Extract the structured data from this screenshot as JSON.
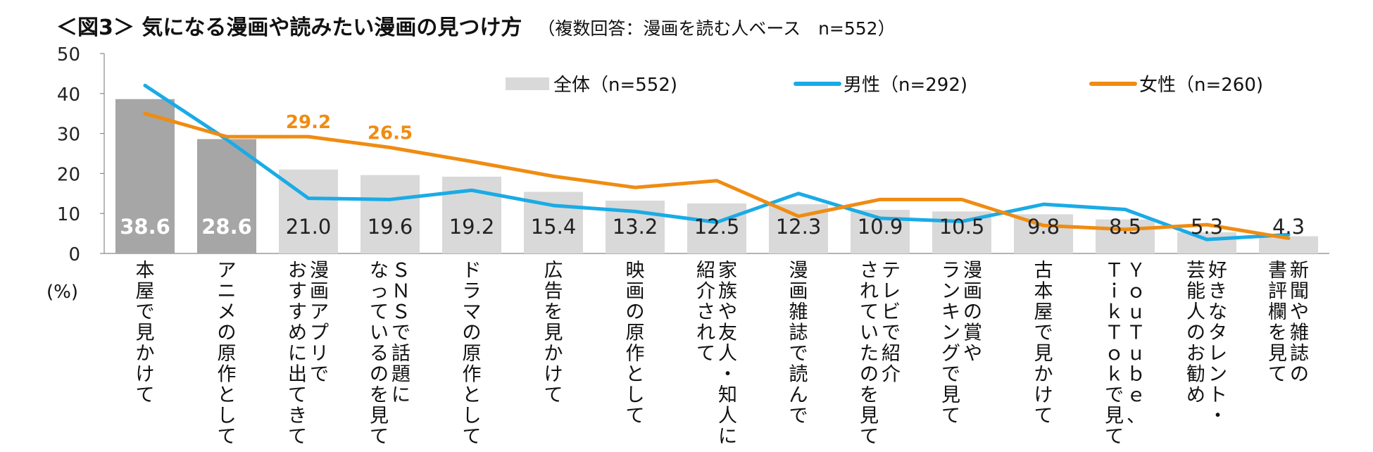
{
  "title": "＜図3＞ 気になる漫画や読みたい漫画の見つけ方",
  "subtitle": "（複数回答：漫画を読む人ベース　n=552）",
  "y_unit_label": "(%)",
  "colors": {
    "bar_top": "#a6a6a6",
    "bar": "#d9d9d9",
    "male": "#1aabe6",
    "female": "#ef8c12",
    "axis": "#888888",
    "bar_label_light": "#ffffff",
    "bar_label_dark": "#222222"
  },
  "chart_data": {
    "type": "bar",
    "ylim": [
      0,
      50
    ],
    "yticks": [
      0,
      10,
      20,
      30,
      40,
      50
    ],
    "legend_position": "top-right",
    "categories": [
      "本屋で見かけて",
      "アニメの原作として",
      "漫画アプリでおすすめに出てきて",
      "ＳＮＳで話題になっているのを見て",
      "ドラマの原作として",
      "広告を見かけて",
      "映画の原作として",
      "家族や友人・知人に紹介されて",
      "漫画雑誌で読んで",
      "テレビで紹介されていたのを見て",
      "漫画の賞やランキングで見て",
      "古本屋で見かけて",
      "ＹｏｕＴｕｂｅ、ＴｉｋＴｏｋで見て",
      "好きなタレント・芸能人のお勧め",
      "新聞や雑誌の書評欄を見て"
    ],
    "category_lines": [
      [
        "本屋で見かけて"
      ],
      [
        "アニメの原作として"
      ],
      [
        "漫画アプリで",
        "おすすめに出てきて"
      ],
      [
        "ＳＮＳで話題に",
        "なっているのを見て"
      ],
      [
        "ドラマの原作として"
      ],
      [
        "広告を見かけて"
      ],
      [
        "映画の原作として"
      ],
      [
        "家族や友人・知人に",
        "紹介されて"
      ],
      [
        "漫画雑誌で読んで"
      ],
      [
        "テレビで紹介",
        "されていたのを見て"
      ],
      [
        "漫画の賞や",
        "ランキングで見て"
      ],
      [
        "古本屋で見かけて"
      ],
      [
        "ＹｏｕＴｕｂｅ、",
        "ＴｉｋＴｏｋで見て"
      ],
      [
        "好きなタレント・",
        "芸能人のお勧め"
      ],
      [
        "新聞や雑誌の",
        "書評欄を見て"
      ]
    ],
    "series": [
      {
        "name": "全体（n=552)",
        "kind": "bar",
        "values": [
          38.6,
          28.6,
          21.0,
          19.6,
          19.2,
          15.4,
          13.2,
          12.5,
          12.3,
          10.9,
          10.5,
          9.8,
          8.5,
          5.3,
          4.3
        ],
        "labels": [
          "38.6",
          "28.6",
          "21.0",
          "19.6",
          "19.2",
          "15.4",
          "13.2",
          "12.5",
          "12.3",
          "10.9",
          "10.5",
          "9.8",
          "8.5",
          "5.3",
          "4.3"
        ]
      },
      {
        "name": "男性（n=292)",
        "kind": "line",
        "values": [
          42.0,
          28.5,
          13.8,
          13.5,
          15.8,
          12.0,
          10.5,
          7.8,
          15.0,
          8.8,
          8.0,
          12.3,
          11.0,
          3.5,
          4.7
        ]
      },
      {
        "name": "女性（n=260)",
        "kind": "line",
        "values": [
          35.0,
          29.2,
          29.2,
          26.5,
          23.0,
          19.3,
          16.5,
          18.2,
          9.3,
          13.5,
          13.5,
          7.0,
          6.0,
          7.2,
          3.8
        ]
      }
    ],
    "female_annotations": [
      {
        "index": 2,
        "text": "29.2"
      },
      {
        "index": 3,
        "text": "26.5"
      }
    ]
  }
}
